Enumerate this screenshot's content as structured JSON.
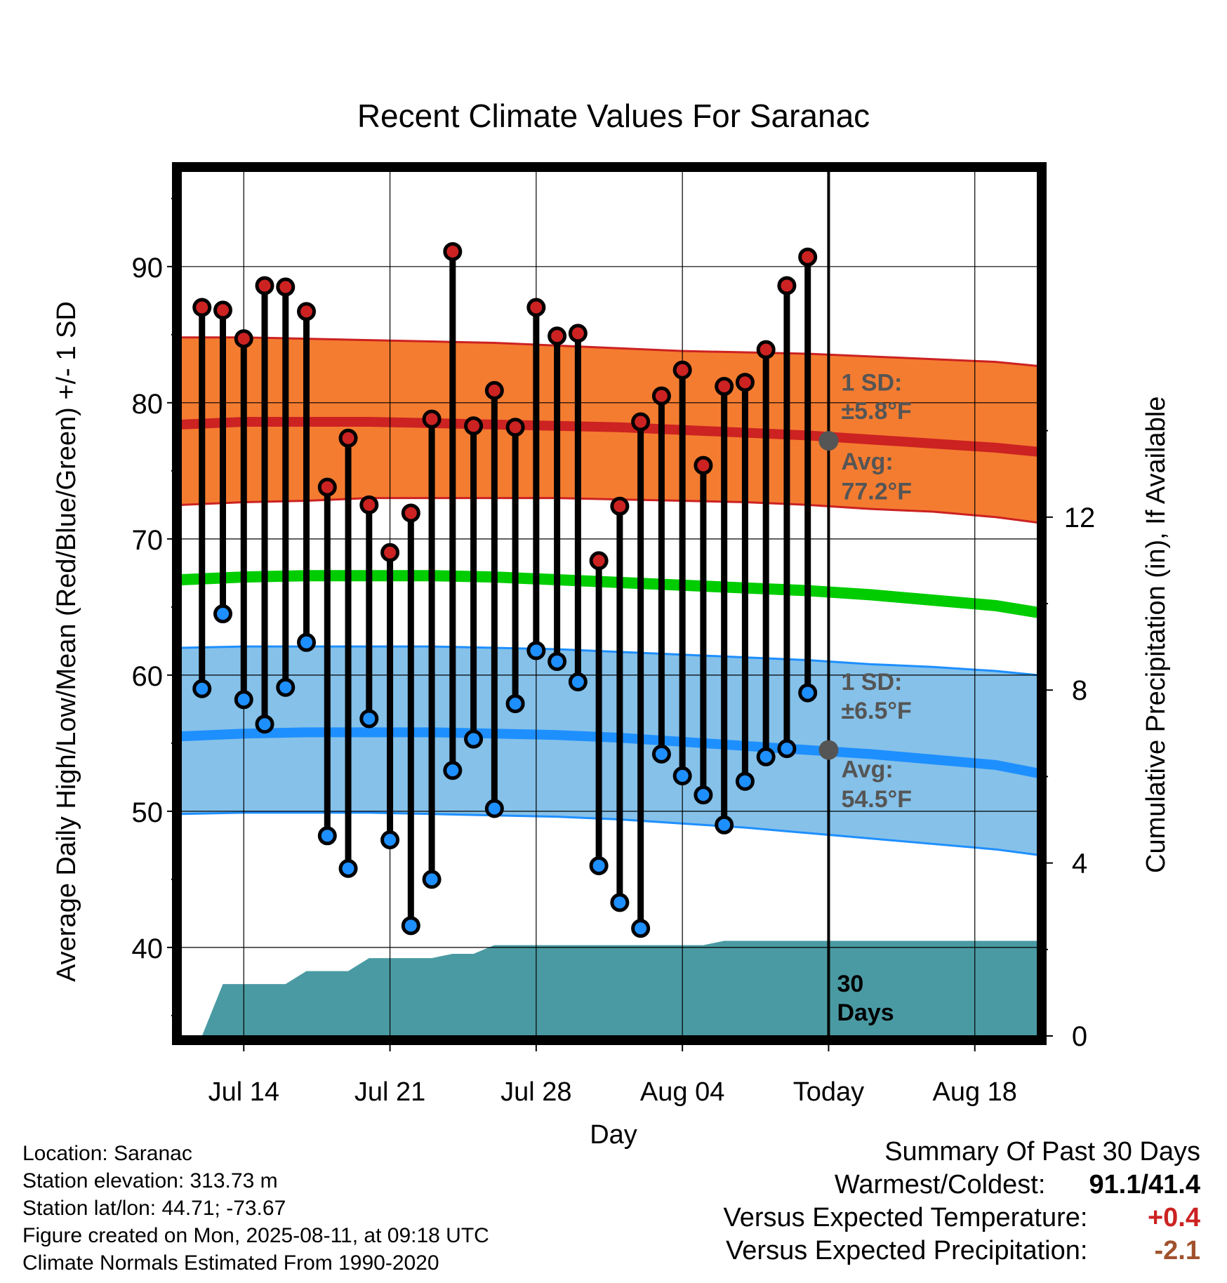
{
  "chart_data": {
    "type": "line",
    "title": "Recent Climate Values For Saranac",
    "xlabel": "Day",
    "ylabel_left": "Average Daily High/Low/Mean (Red/Blue/Green) +/- 1 SD",
    "ylabel_right": "Cumulative Precipitation (in), If Available",
    "x_tick_labels": [
      "Jul 14",
      "Jul 21",
      "Jul 28",
      "Aug 04",
      "Today",
      "Aug 18"
    ],
    "y_left_ticks": [
      40,
      50,
      60,
      70,
      80,
      90
    ],
    "y_right_ticks": [
      0,
      4,
      8,
      12
    ],
    "ylim_left": [
      33.5,
      97
    ],
    "ylim_right": [
      0,
      20
    ],
    "xlim_days": [
      "Jul 11",
      "Aug 21"
    ],
    "grid": true,
    "daily_high": [
      87.0,
      86.8,
      84.7,
      88.6,
      88.5,
      86.7,
      73.8,
      77.4,
      72.5,
      69.0,
      71.9,
      78.8,
      91.1,
      78.3,
      80.9,
      78.2,
      87.0,
      84.9,
      85.1,
      68.4,
      72.4,
      78.6,
      80.5,
      82.4,
      75.4,
      81.2,
      81.5,
      83.9,
      88.6,
      90.7
    ],
    "daily_low": [
      59.0,
      64.5,
      58.2,
      56.4,
      59.1,
      62.4,
      48.2,
      45.8,
      56.8,
      47.9,
      41.6,
      45.0,
      53.0,
      55.3,
      50.2,
      57.9,
      61.8,
      61.0,
      59.5,
      46.0,
      43.3,
      41.4,
      54.2,
      52.6,
      51.2,
      49.0,
      52.2,
      54.0,
      54.6,
      58.7
    ],
    "normal_high": [
      78.4,
      78.6,
      78.6,
      78.6,
      78.5,
      78.4,
      78.3,
      78.2,
      78.0,
      77.8,
      77.6,
      77.3,
      77.0,
      76.7,
      76.4
    ],
    "normal_high_upper": [
      84.8,
      84.8,
      84.7,
      84.6,
      84.5,
      84.4,
      84.2,
      84.0,
      83.8,
      83.7,
      83.6,
      83.4,
      83.2,
      83.0,
      82.7
    ],
    "normal_high_lower": [
      72.5,
      72.7,
      72.8,
      73.0,
      73.0,
      73.0,
      73.0,
      72.9,
      72.8,
      72.7,
      72.5,
      72.2,
      72.0,
      71.6,
      71.2
    ],
    "normal_mean": [
      67.0,
      67.2,
      67.3,
      67.3,
      67.3,
      67.2,
      67.0,
      66.8,
      66.6,
      66.4,
      66.2,
      65.9,
      65.5,
      65.1,
      64.6
    ],
    "normal_low": [
      55.5,
      55.7,
      55.8,
      55.8,
      55.8,
      55.7,
      55.6,
      55.4,
      55.1,
      54.8,
      54.5,
      54.2,
      53.8,
      53.4,
      52.8
    ],
    "normal_low_upper": [
      62.0,
      62.1,
      62.1,
      62.1,
      62.1,
      62.0,
      61.9,
      61.7,
      61.5,
      61.3,
      61.1,
      60.8,
      60.6,
      60.3,
      60.0
    ],
    "normal_low_lower": [
      49.8,
      49.9,
      49.9,
      49.9,
      49.8,
      49.7,
      49.6,
      49.4,
      49.1,
      48.8,
      48.4,
      48.0,
      47.6,
      47.2,
      46.8
    ],
    "cumulative_precip": [
      0.0,
      0.0,
      1.2,
      1.2,
      1.2,
      1.2,
      1.5,
      1.5,
      1.5,
      1.8,
      1.8,
      1.8,
      1.8,
      1.9,
      1.9,
      2.1,
      2.1,
      2.1,
      2.1,
      2.1,
      2.1,
      2.1,
      2.1,
      2.1,
      2.1,
      2.1,
      2.2,
      2.2,
      2.2,
      2.2,
      2.2
    ],
    "annotations": {
      "high_sd_label": "1 SD:",
      "high_sd_value": "±5.8°F",
      "high_avg_label": "Avg:",
      "high_avg_value": "77.2°F",
      "low_sd_label": "1 SD:",
      "low_sd_value": "±6.5°F",
      "low_avg_label": "Avg:",
      "low_avg_value": "54.5°F",
      "precip_label_1": "30",
      "precip_label_2": "Days",
      "today_avg_high": 77.2,
      "today_avg_low": 54.5
    },
    "colors": {
      "high_band": "#f47c30",
      "high_line": "#cc2222",
      "mean_line": "#00cc00",
      "low_band": "#85c1e9",
      "low_line": "#1e8fff",
      "precip": "#4a9aa3",
      "high_marker": "#cc2222",
      "low_marker": "#1e8fff",
      "annotation": "#555555"
    }
  },
  "meta": {
    "location": "Location: Saranac",
    "elevation": "Station elevation: 313.73 m",
    "latlon": "Station lat/lon: 44.71; -73.67",
    "created": "Figure created on Mon, 2025-08-11, at 09:18 UTC",
    "normals": "Climate Normals Estimated From 1990-2020"
  },
  "summary": {
    "heading": "Summary Of Past 30 Days",
    "warm_cold_label": "Warmest/Coldest:",
    "warm_cold_value": "91.1/41.4",
    "temp_label": "Versus Expected Temperature:",
    "temp_value": "+0.4",
    "temp_color": "#cc2222",
    "precip_label": "Versus Expected Precipitation:",
    "precip_value": "-2.1",
    "precip_color": "#a0522d"
  }
}
